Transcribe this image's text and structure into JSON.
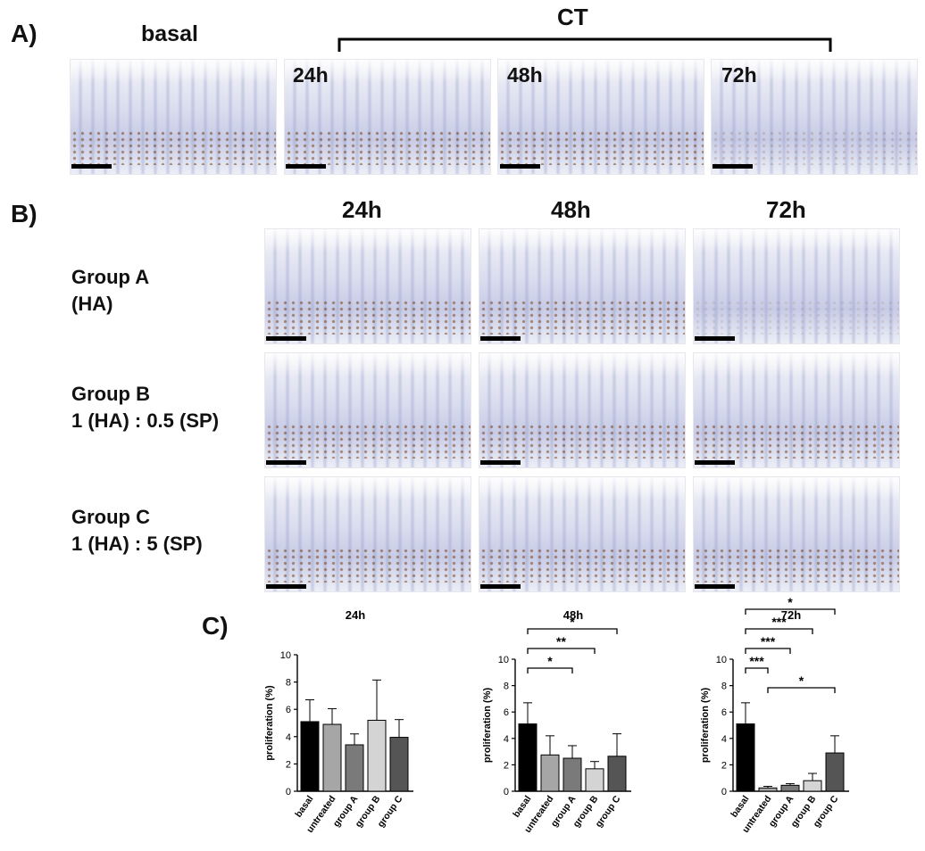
{
  "panels": {
    "a": "A)",
    "b": "B)",
    "c": "C)"
  },
  "panel_a": {
    "basal_label": "basal",
    "ct_label": "CT",
    "timepoints": [
      "24h",
      "48h",
      "72h"
    ]
  },
  "panel_b": {
    "timepoints": [
      "24h",
      "48h",
      "72h"
    ],
    "groups": [
      {
        "name": "Group A",
        "detail": "(HA)"
      },
      {
        "name": "Group B",
        "detail": "1 (HA) : 0.5 (SP)"
      },
      {
        "name": "Group C",
        "detail": "1 (HA) : 5 (SP)"
      }
    ]
  },
  "chart_data": [
    {
      "type": "bar",
      "title": "24h",
      "ylabel": "proliferation (%)",
      "ylim": [
        0,
        10
      ],
      "yticks": [
        "0",
        "2",
        "4",
        "6",
        "8",
        "10"
      ],
      "categories": [
        "basal",
        "untreated",
        "group A",
        "group B",
        "group C"
      ],
      "values": [
        5.1,
        4.9,
        3.4,
        5.2,
        3.95
      ],
      "errors": [
        1.6,
        1.15,
        0.8,
        2.95,
        1.3
      ],
      "colors": [
        "#000000",
        "#a6a6a6",
        "#7a7a7a",
        "#d4d4d4",
        "#555555"
      ],
      "significance": []
    },
    {
      "type": "bar",
      "title": "48h",
      "ylabel": "proliferation (%)",
      "ylim": [
        0,
        10
      ],
      "yticks": [
        "0",
        "2",
        "4",
        "6",
        "8",
        "10"
      ],
      "categories": [
        "basal",
        "untreated",
        "group A",
        "group B",
        "group C"
      ],
      "values": [
        5.1,
        2.75,
        2.5,
        1.7,
        2.65
      ],
      "errors": [
        1.6,
        1.45,
        0.95,
        0.55,
        1.7
      ],
      "colors": [
        "#000000",
        "#a6a6a6",
        "#7a7a7a",
        "#d4d4d4",
        "#555555"
      ],
      "significance": [
        {
          "from": 0,
          "to": 2,
          "label": "*"
        },
        {
          "from": 0,
          "to": 3,
          "label": "**"
        },
        {
          "from": 0,
          "to": 4,
          "label": "*"
        }
      ]
    },
    {
      "type": "bar",
      "title": "72h",
      "ylabel": "proliferation (%)",
      "ylim": [
        0,
        10
      ],
      "yticks": [
        "0",
        "2",
        "4",
        "6",
        "8",
        "10"
      ],
      "categories": [
        "basal",
        "untreated",
        "group A",
        "group B",
        "group C"
      ],
      "values": [
        5.1,
        0.25,
        0.45,
        0.8,
        2.9
      ],
      "errors": [
        1.6,
        0.12,
        0.12,
        0.55,
        1.3
      ],
      "colors": [
        "#000000",
        "#a6a6a6",
        "#7a7a7a",
        "#d4d4d4",
        "#555555"
      ],
      "significance": [
        {
          "from": 0,
          "to": 1,
          "label": "***"
        },
        {
          "from": 0,
          "to": 2,
          "label": "***"
        },
        {
          "from": 0,
          "to": 3,
          "label": "***"
        },
        {
          "from": 0,
          "to": 4,
          "label": "*"
        },
        {
          "from": 1,
          "to": 4,
          "label": "*"
        }
      ]
    }
  ]
}
